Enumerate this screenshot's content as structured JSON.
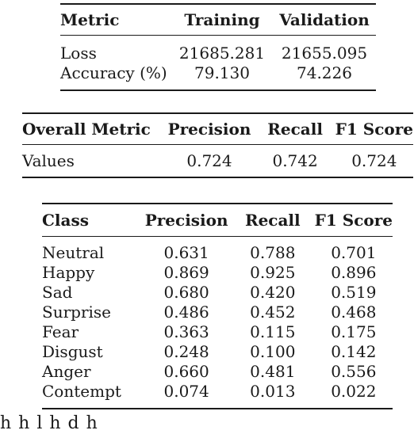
{
  "loss_table": {
    "headers": [
      "Metric",
      "Training",
      "Validation"
    ],
    "rows": [
      [
        "Loss",
        "21685.281",
        "21655.095"
      ],
      [
        "Accuracy (%)",
        "79.130",
        "74.226"
      ]
    ]
  },
  "overall_table": {
    "headers": [
      "Overall Metric",
      "Precision",
      "Recall",
      "F1 Score"
    ],
    "rows": [
      [
        "Values",
        "0.724",
        "0.742",
        "0.724"
      ]
    ]
  },
  "class_table": {
    "headers": [
      "Class",
      "Precision",
      "Recall",
      "F1 Score"
    ],
    "rows": [
      [
        "Neutral",
        "0.631",
        "0.788",
        "0.701"
      ],
      [
        "Happy",
        "0.869",
        "0.925",
        "0.896"
      ],
      [
        "Sad",
        "0.680",
        "0.420",
        "0.519"
      ],
      [
        "Surprise",
        "0.486",
        "0.452",
        "0.468"
      ],
      [
        "Fear",
        "0.363",
        "0.115",
        "0.175"
      ],
      [
        "Disgust",
        "0.248",
        "0.100",
        "0.142"
      ],
      [
        "Anger",
        "0.660",
        "0.481",
        "0.556"
      ],
      [
        "Contempt",
        "0.074",
        "0.013",
        "0.022"
      ]
    ]
  },
  "trailing_text": "h  h        l    h         d     h"
}
